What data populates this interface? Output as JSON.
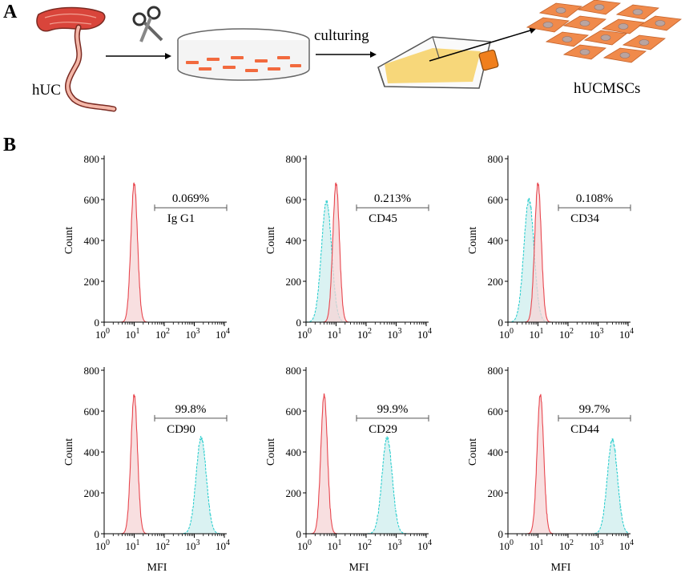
{
  "panelA": {
    "letter": "A",
    "source_label": "hUC",
    "process_label": "culturing",
    "result_label": "hUCMSCs"
  },
  "panelB": {
    "letter": "B",
    "ylabel": "Count",
    "xlabel": "MFI",
    "y_ticks": [
      "0",
      "200",
      "400",
      "600",
      "800"
    ],
    "x_tick_bases": [
      "10",
      "10",
      "10",
      "10",
      "10"
    ],
    "x_tick_exps": [
      "0",
      "1",
      "2",
      "3",
      "4"
    ]
  },
  "colors": {
    "control": "#e8474f",
    "control_fill": "#f6d4d6",
    "marker": "#2fcfcf",
    "marker_fill": "#cdeeee",
    "umbilical": "#d9453b",
    "cells": "#f08a4b",
    "flask": "#f7d77a",
    "cap": "#f07f1c"
  },
  "chart_data": [
    {
      "type": "area",
      "marker": "Ig G1",
      "percent": "0.069%",
      "xscale": "log",
      "xlim": [
        1,
        10000
      ],
      "ylim": [
        0,
        800
      ],
      "series": [
        {
          "name": "",
          "peak_x": 10,
          "peak_count": 680
        }
      ],
      "show_xlabel": false
    },
    {
      "type": "area",
      "marker": "CD45",
      "percent": "0.213%",
      "xscale": "log",
      "xlim": [
        1,
        10000
      ],
      "ylim": [
        0,
        800
      ],
      "series": [
        {
          "name": "",
          "peak_x": 10,
          "peak_count": 680
        },
        {
          "name": "CD45",
          "peak_x": 4.8,
          "peak_count": 590
        }
      ],
      "show_xlabel": false
    },
    {
      "type": "area",
      "marker": "CD34",
      "percent": "0.108%",
      "xscale": "log",
      "xlim": [
        1,
        10000
      ],
      "ylim": [
        0,
        800
      ],
      "series": [
        {
          "name": "",
          "peak_x": 10,
          "peak_count": 680
        },
        {
          "name": "CD34",
          "peak_x": 5,
          "peak_count": 600
        }
      ],
      "show_xlabel": false
    },
    {
      "type": "area",
      "marker": "CD90",
      "percent": "99.8%",
      "xscale": "log",
      "xlim": [
        1,
        10000
      ],
      "ylim": [
        0,
        800
      ],
      "series": [
        {
          "name": "",
          "peak_x": 10,
          "peak_count": 680
        },
        {
          "name": "CD90",
          "peak_x": 1700,
          "peak_count": 470
        }
      ],
      "show_xlabel": true
    },
    {
      "type": "area",
      "marker": "CD29",
      "percent": "99.9%",
      "xscale": "log",
      "xlim": [
        1,
        10000
      ],
      "ylim": [
        0,
        800
      ],
      "series": [
        {
          "name": "",
          "peak_x": 4,
          "peak_count": 680
        },
        {
          "name": "CD29",
          "peak_x": 500,
          "peak_count": 470
        }
      ],
      "show_xlabel": true
    },
    {
      "type": "area",
      "marker": "CD44",
      "percent": "99.7%",
      "xscale": "log",
      "xlim": [
        1,
        10000
      ],
      "ylim": [
        0,
        800
      ],
      "series": [
        {
          "name": "",
          "peak_x": 12,
          "peak_count": 680
        },
        {
          "name": "CD44",
          "peak_x": 3000,
          "peak_count": 460
        }
      ],
      "show_xlabel": true
    }
  ]
}
